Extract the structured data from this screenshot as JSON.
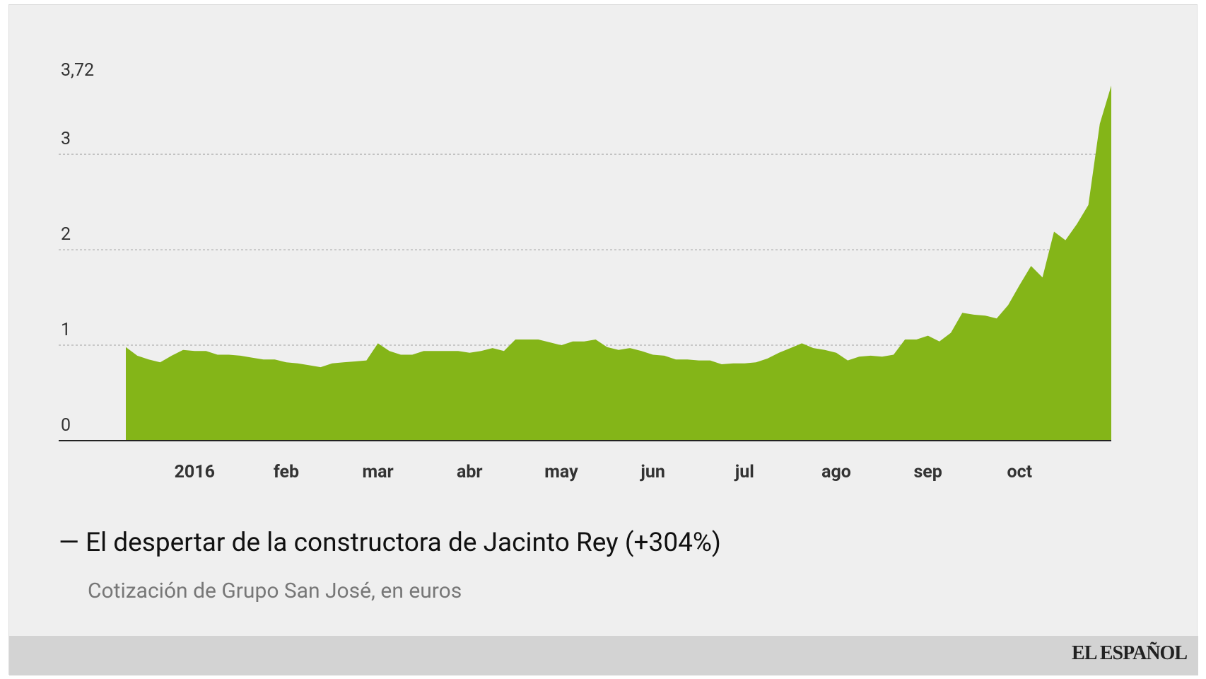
{
  "chart_data": {
    "type": "area",
    "title": "— El despertar de la constructora de Jacinto Rey (+304%)",
    "subtitle": "Cotización de Grupo San José, en euros",
    "source": "EL ESPAÑOL",
    "color": "#84b518",
    "grid": true,
    "ylim": [
      0,
      3.72
    ],
    "yticks": [
      0,
      1,
      2,
      3,
      {
        "value": 3.72,
        "label": "3,72"
      }
    ],
    "categories": [
      null,
      null,
      null,
      null,
      null,
      null,
      "2016",
      null,
      null,
      null,
      null,
      null,
      null,
      null,
      "feb",
      null,
      null,
      null,
      null,
      null,
      null,
      null,
      "mar",
      null,
      null,
      null,
      null,
      null,
      null,
      null,
      "abr",
      null,
      null,
      null,
      null,
      null,
      null,
      null,
      "may",
      null,
      null,
      null,
      null,
      null,
      null,
      null,
      "jun",
      null,
      null,
      null,
      null,
      null,
      null,
      null,
      "jul",
      null,
      null,
      null,
      null,
      null,
      null,
      null,
      "ago",
      null,
      null,
      null,
      null,
      null,
      null,
      null,
      "sep",
      null,
      null,
      null,
      null,
      null,
      null,
      null,
      "oct",
      null,
      null,
      null,
      null,
      null,
      null,
      null,
      null
    ],
    "values": [
      0.98,
      0.89,
      0.85,
      0.82,
      0.89,
      0.95,
      0.94,
      0.94,
      0.9,
      0.9,
      0.89,
      0.87,
      0.85,
      0.85,
      0.82,
      0.81,
      0.79,
      0.77,
      0.81,
      0.82,
      0.83,
      0.84,
      1.02,
      0.94,
      0.9,
      0.9,
      0.94,
      0.94,
      0.94,
      0.94,
      0.92,
      0.94,
      0.97,
      0.94,
      1.06,
      1.06,
      1.06,
      1.03,
      1.0,
      1.04,
      1.04,
      1.06,
      0.98,
      0.95,
      0.97,
      0.94,
      0.9,
      0.89,
      0.85,
      0.85,
      0.84,
      0.84,
      0.8,
      0.81,
      0.81,
      0.82,
      0.86,
      0.92,
      0.97,
      1.02,
      0.97,
      0.95,
      0.92,
      0.84,
      0.88,
      0.89,
      0.88,
      0.9,
      1.06,
      1.06,
      1.1,
      1.04,
      1.13,
      1.34,
      1.32,
      1.31,
      1.28,
      1.42,
      1.63,
      1.83,
      1.71,
      2.19,
      2.1,
      2.27,
      2.47,
      3.32,
      3.72
    ]
  }
}
